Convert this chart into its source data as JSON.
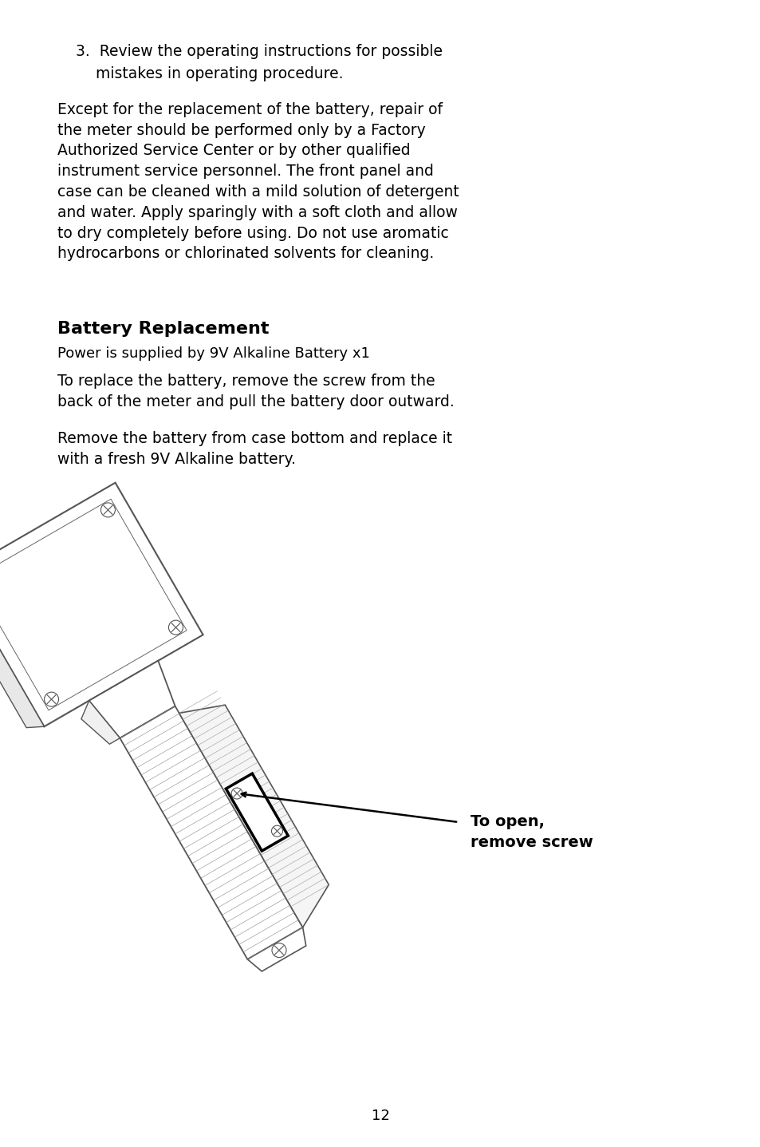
{
  "background_color": "#ffffff",
  "page_width": 9.54,
  "page_height": 14.37,
  "dpi": 100,
  "text_color": "#000000",
  "font_family": "DejaVu Sans",
  "item3_line1": "3. Review the operating instructions for possible",
  "item3_line2": "      mistakes in operating procedure.",
  "para1": "Except for the replacement of the battery, repair of\nthe meter should be performed only by a Factory\nAuthorized Service Center or by other qualified\ninstrument service personnel. The front panel and\ncase can be cleaned with a mild solution of detergent\nand water. Apply sparingly with a soft cloth and allow\nto dry completely before using. Do not use aromatic\nhydrocarbons or chlorinated solvents for cleaning.",
  "section_title": "Battery Replacement",
  "section_subtitle": "Power is supplied by 9V Alkaline Battery x1",
  "para2": "To replace the battery, remove the screw from the\nback of the meter and pull the battery door outward.",
  "para3": "Remove the battery from case bottom and replace it\nwith a fresh 9V Alkaline battery.",
  "annotation_line1": "To open,",
  "annotation_line2": "remove screw",
  "page_number": "12",
  "font_size_body": 13.5,
  "font_size_title": 16,
  "font_size_subtitle": 13,
  "font_size_annotation": 14,
  "font_size_page": 13
}
